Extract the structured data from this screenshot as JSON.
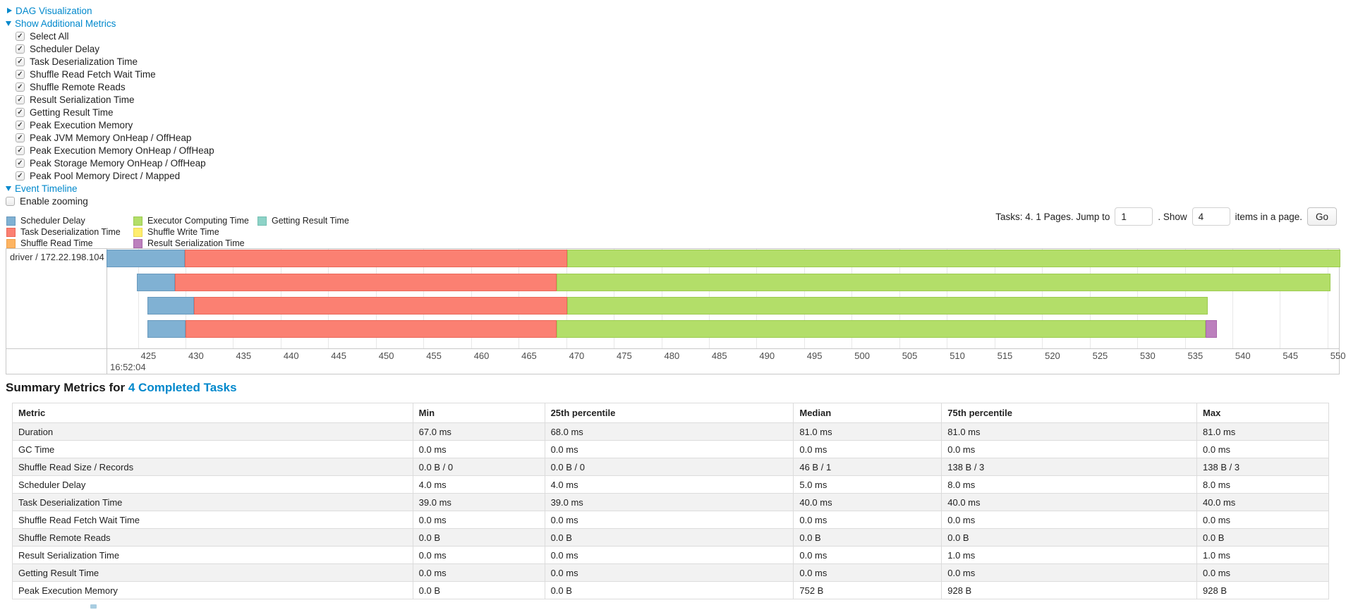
{
  "sections": {
    "dag": {
      "label": "DAG Visualization",
      "state": "collapsed"
    },
    "additional_metrics": {
      "label": "Show Additional Metrics",
      "state": "expanded"
    },
    "event_timeline": {
      "label": "Event Timeline",
      "state": "expanded"
    }
  },
  "metric_checkboxes": [
    {
      "label": "Select All",
      "checked": true
    },
    {
      "label": "Scheduler Delay",
      "checked": true
    },
    {
      "label": "Task Deserialization Time",
      "checked": true
    },
    {
      "label": "Shuffle Read Fetch Wait Time",
      "checked": true
    },
    {
      "label": "Shuffle Remote Reads",
      "checked": true
    },
    {
      "label": "Result Serialization Time",
      "checked": true
    },
    {
      "label": "Getting Result Time",
      "checked": true
    },
    {
      "label": "Peak Execution Memory",
      "checked": true
    },
    {
      "label": "Peak JVM Memory OnHeap / OffHeap",
      "checked": true
    },
    {
      "label": "Peak Execution Memory OnHeap / OffHeap",
      "checked": true
    },
    {
      "label": "Peak Storage Memory OnHeap / OffHeap",
      "checked": true
    },
    {
      "label": "Peak Pool Memory Direct / Mapped",
      "checked": true
    }
  ],
  "enable_zooming": {
    "label": "Enable zooming",
    "checked": false
  },
  "pagination": {
    "info": "Tasks: 4. 1 Pages. Jump to",
    "jump_value": "1",
    "mid": ". Show",
    "show_value": "4",
    "suffix": "items in a page.",
    "go_label": "Go"
  },
  "legend": {
    "columns": [
      [
        {
          "label": "Scheduler Delay",
          "type": "scheduler_delay"
        },
        {
          "label": "Task Deserialization Time",
          "type": "task_deserialization"
        },
        {
          "label": "Shuffle Read Time",
          "type": "shuffle_read"
        }
      ],
      [
        {
          "label": "Executor Computing Time",
          "type": "executor_computing"
        },
        {
          "label": "Shuffle Write Time",
          "type": "shuffle_write"
        },
        {
          "label": "Result Serialization Time",
          "type": "result_serialization"
        }
      ],
      [
        {
          "label": "Getting Result Time",
          "type": "getting_result"
        }
      ]
    ]
  },
  "colors": {
    "link": "#0088cc",
    "scheduler_delay": {
      "bg": "#80B1D3",
      "border": "#6899bd"
    },
    "task_deserialization": {
      "bg": "#FB8072",
      "border": "#ea685a"
    },
    "shuffle_read": {
      "bg": "#FDB462",
      "border": "#efa04a"
    },
    "executor_computing": {
      "bg": "#B3DE69",
      "border": "#9ccb50"
    },
    "shuffle_write": {
      "bg": "#FFED6F",
      "border": "#ecd954"
    },
    "result_serialization": {
      "bg": "#BC80BD",
      "border": "#a968aa"
    },
    "getting_result": {
      "bg": "#8DD3C7",
      "border": "#74bfb1"
    }
  },
  "chart_data": {
    "type": "timeline",
    "group_label": "driver / 172.22.198.104",
    "x_axis": {
      "base_time_label": "16:52:04",
      "unit": "ms",
      "tick_start": 425,
      "tick_end": 550,
      "tick_step": 5,
      "view_min": 421.7,
      "view_max": 551.2
    },
    "tasks": [
      {
        "segments": [
          {
            "type": "scheduler_delay",
            "start": 421.7,
            "end": 429.9,
            "clipped_left": true
          },
          {
            "type": "task_deserialization",
            "start": 429.9,
            "end": 470.1
          },
          {
            "type": "executor_computing",
            "start": 470.1,
            "end": 552.0,
            "clipped_right": true
          }
        ]
      },
      {
        "segments": [
          {
            "type": "scheduler_delay",
            "start": 424.9,
            "end": 428.9
          },
          {
            "type": "task_deserialization",
            "start": 428.9,
            "end": 469.0
          },
          {
            "type": "executor_computing",
            "start": 469.0,
            "end": 550.3
          }
        ]
      },
      {
        "segments": [
          {
            "type": "scheduler_delay",
            "start": 426.0,
            "end": 430.9
          },
          {
            "type": "task_deserialization",
            "start": 430.9,
            "end": 470.1
          },
          {
            "type": "executor_computing",
            "start": 470.1,
            "end": 537.4
          }
        ]
      },
      {
        "segments": [
          {
            "type": "scheduler_delay",
            "start": 426.0,
            "end": 430.0
          },
          {
            "type": "task_deserialization",
            "start": 430.0,
            "end": 469.0
          },
          {
            "type": "executor_computing",
            "start": 469.0,
            "end": 537.2
          },
          {
            "type": "result_serialization",
            "start": 537.2,
            "end": 538.4
          }
        ]
      }
    ]
  },
  "summary": {
    "title_prefix": "Summary Metrics for",
    "title_link": "4 Completed Tasks",
    "columns": [
      "Metric",
      "Min",
      "25th percentile",
      "Median",
      "75th percentile",
      "Max"
    ],
    "rows": [
      [
        "Duration",
        "67.0 ms",
        "68.0 ms",
        "81.0 ms",
        "81.0 ms",
        "81.0 ms"
      ],
      [
        "GC Time",
        "0.0 ms",
        "0.0 ms",
        "0.0 ms",
        "0.0 ms",
        "0.0 ms"
      ],
      [
        "Shuffle Read Size / Records",
        "0.0 B / 0",
        "0.0 B / 0",
        "46 B / 1",
        "138 B / 3",
        "138 B / 3"
      ],
      [
        "Scheduler Delay",
        "4.0 ms",
        "4.0 ms",
        "5.0 ms",
        "8.0 ms",
        "8.0 ms"
      ],
      [
        "Task Deserialization Time",
        "39.0 ms",
        "39.0 ms",
        "40.0 ms",
        "40.0 ms",
        "40.0 ms"
      ],
      [
        "Shuffle Read Fetch Wait Time",
        "0.0 ms",
        "0.0 ms",
        "0.0 ms",
        "0.0 ms",
        "0.0 ms"
      ],
      [
        "Shuffle Remote Reads",
        "0.0 B",
        "0.0 B",
        "0.0 B",
        "0.0 B",
        "0.0 B"
      ],
      [
        "Result Serialization Time",
        "0.0 ms",
        "0.0 ms",
        "0.0 ms",
        "1.0 ms",
        "1.0 ms"
      ],
      [
        "Getting Result Time",
        "0.0 ms",
        "0.0 ms",
        "0.0 ms",
        "0.0 ms",
        "0.0 ms"
      ],
      [
        "Peak Execution Memory",
        "0.0 B",
        "0.0 B",
        "752 B",
        "928 B",
        "928 B"
      ]
    ]
  }
}
